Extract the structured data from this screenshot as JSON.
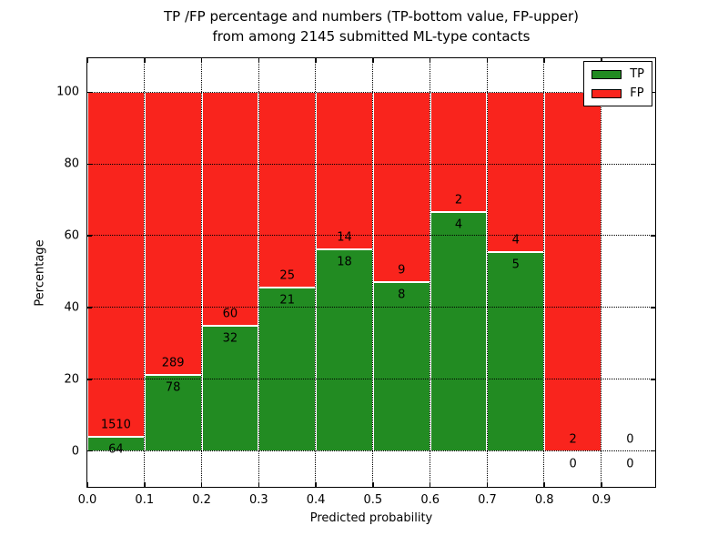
{
  "figure": {
    "title_line1": "TP /FP percentage and numbers (TP-bottom value, FP-upper)",
    "title_line2": "from among 2145 submitted ML-type contacts"
  },
  "chart_data": {
    "type": "bar",
    "stacked": true,
    "normalized_to_percent": true,
    "title": "TP /FP percentage and numbers (TP-bottom value, FP-upper) from among 2145 submitted ML-type contacts",
    "xlabel": "Predicted probability",
    "ylabel": "Percentage",
    "total_contacts": 2145,
    "bin_width": 0.1,
    "x_ticks": [
      "0.0",
      "0.1",
      "0.2",
      "0.3",
      "0.4",
      "0.5",
      "0.6",
      "0.7",
      "0.8",
      "0.9"
    ],
    "y_ticks": [
      0,
      20,
      40,
      60,
      80,
      100
    ],
    "xlim": [
      0,
      0.994
    ],
    "ylim": [
      -10,
      109.5
    ],
    "grid": "dotted",
    "legend_position": "upper right",
    "bins": [
      {
        "x0": 0.0,
        "tp": 64,
        "fp": 1510
      },
      {
        "x0": 0.1,
        "tp": 78,
        "fp": 289
      },
      {
        "x0": 0.2,
        "tp": 32,
        "fp": 60
      },
      {
        "x0": 0.3,
        "tp": 21,
        "fp": 25
      },
      {
        "x0": 0.4,
        "tp": 18,
        "fp": 14
      },
      {
        "x0": 0.5,
        "tp": 8,
        "fp": 9
      },
      {
        "x0": 0.6,
        "tp": 4,
        "fp": 2
      },
      {
        "x0": 0.7,
        "tp": 5,
        "fp": 4
      },
      {
        "x0": 0.8,
        "tp": 0,
        "fp": 2
      },
      {
        "x0": 0.9,
        "tp": 0,
        "fp": 0
      }
    ],
    "legend": [
      {
        "label": "TP",
        "color": "#228b22"
      },
      {
        "label": "FP",
        "color": "#f9241d"
      }
    ],
    "colors": {
      "tp": "#228b22",
      "fp": "#f9241d",
      "grid": "#000000",
      "segment_edge": "#ffffff",
      "background": "#ffffff"
    }
  }
}
